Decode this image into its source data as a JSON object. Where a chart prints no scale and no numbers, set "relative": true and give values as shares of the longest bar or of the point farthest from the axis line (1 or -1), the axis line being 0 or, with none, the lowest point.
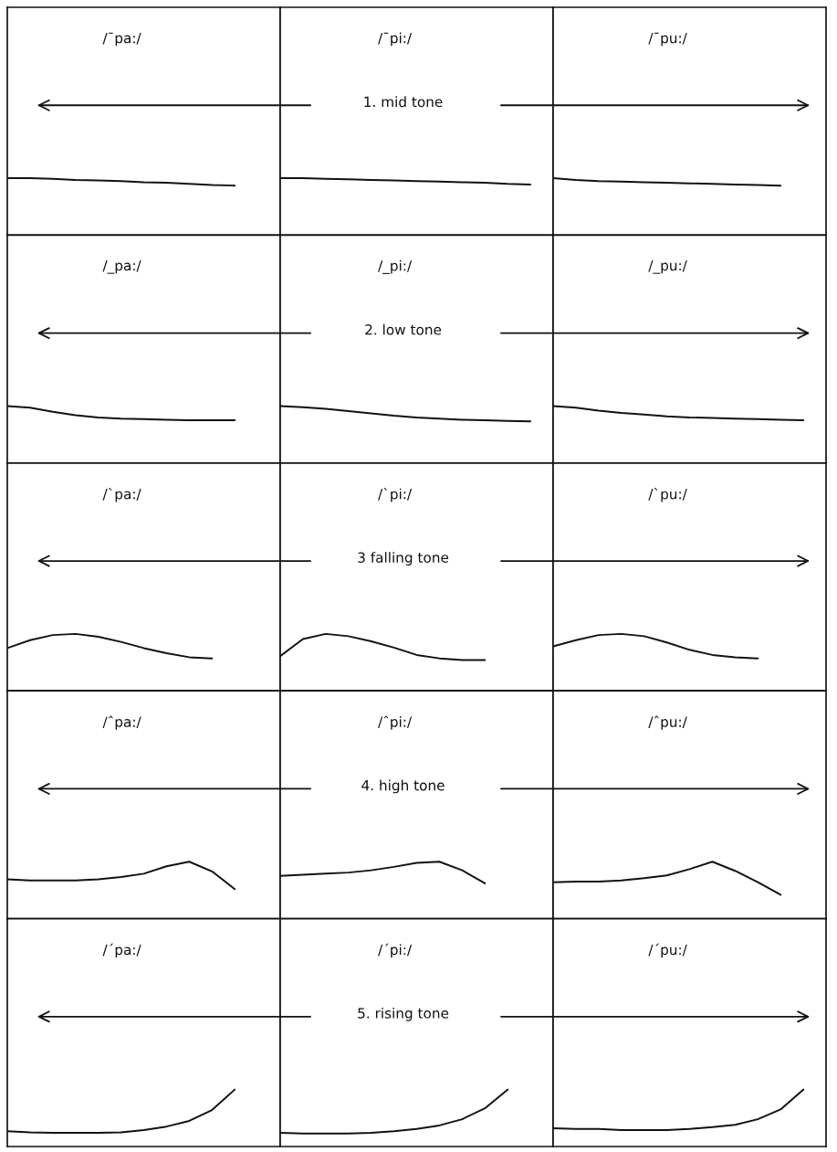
{
  "chart_data": [
    {
      "type": "line",
      "title": "/¯pa:/",
      "relative": true,
      "categories": [
        null,
        null,
        null,
        null,
        null,
        null,
        null,
        null,
        null,
        null,
        null,
        null,
        null
      ],
      "series": [
        {
          "color": "#111111",
          "values": [
            1,
            1,
            0.99,
            0.97,
            0.96,
            0.95,
            0.93,
            0.92,
            0.9,
            0.88,
            0.87,
            null,
            null
          ]
        }
      ]
    },
    {
      "type": "line",
      "title": "/¯pi:/",
      "relative": true,
      "annotations": [
        "1. mid tone"
      ],
      "categories": [
        null,
        null,
        null,
        null,
        null,
        null,
        null,
        null,
        null,
        null,
        null,
        null,
        null
      ],
      "series": [
        {
          "color": "#111111",
          "values": [
            1,
            1,
            0.99,
            0.98,
            0.97,
            0.96,
            0.95,
            0.94,
            0.93,
            0.92,
            0.9,
            0.89,
            null
          ]
        }
      ]
    },
    {
      "type": "line",
      "title": "/¯pu:/",
      "relative": true,
      "categories": [
        null,
        null,
        null,
        null,
        null,
        null,
        null,
        null,
        null,
        null,
        null,
        null,
        null
      ],
      "series": [
        {
          "color": "#111111",
          "values": [
            1,
            0.97,
            0.95,
            0.94,
            0.93,
            0.92,
            0.91,
            0.9,
            0.89,
            0.88,
            0.87,
            null,
            null
          ]
        }
      ]
    },
    {
      "type": "line",
      "title": "/_pa:/",
      "relative": true,
      "categories": [
        null,
        null,
        null,
        null,
        null,
        null,
        null,
        null,
        null,
        null,
        null,
        null,
        null
      ],
      "series": [
        {
          "color": "#111111",
          "values": [
            1,
            0.97,
            0.9,
            0.84,
            0.8,
            0.78,
            0.77,
            0.76,
            0.75,
            0.75,
            0.75,
            null,
            null
          ]
        }
      ]
    },
    {
      "type": "line",
      "title": "/_pi:/",
      "relative": true,
      "annotations": [
        "2. low tone"
      ],
      "categories": [
        null,
        null,
        null,
        null,
        null,
        null,
        null,
        null,
        null,
        null,
        null,
        null,
        null
      ],
      "series": [
        {
          "color": "#111111",
          "values": [
            1,
            0.98,
            0.95,
            0.91,
            0.87,
            0.83,
            0.8,
            0.78,
            0.76,
            0.75,
            0.74,
            0.73,
            null
          ]
        }
      ]
    },
    {
      "type": "line",
      "title": "/_pu:/",
      "relative": true,
      "categories": [
        null,
        null,
        null,
        null,
        null,
        null,
        null,
        null,
        null,
        null,
        null,
        null,
        null
      ],
      "series": [
        {
          "color": "#111111",
          "values": [
            1,
            0.97,
            0.92,
            0.88,
            0.85,
            0.82,
            0.8,
            0.79,
            0.78,
            0.77,
            0.76,
            0.75,
            null
          ]
        }
      ]
    },
    {
      "type": "line",
      "title": "/ˋpa:/",
      "relative": true,
      "categories": [
        null,
        null,
        null,
        null,
        null,
        null,
        null,
        null,
        null,
        null,
        null,
        null,
        null
      ],
      "series": [
        {
          "color": "#111111",
          "values": [
            0.75,
            0.89,
            0.98,
            1,
            0.95,
            0.86,
            0.75,
            0.66,
            0.59,
            0.57,
            null,
            null,
            null
          ]
        }
      ]
    },
    {
      "type": "line",
      "title": "/ˋpi:/",
      "relative": true,
      "annotations": [
        "3 falling tone"
      ],
      "categories": [
        null,
        null,
        null,
        null,
        null,
        null,
        null,
        null,
        null,
        null,
        null,
        null,
        null
      ],
      "series": [
        {
          "color": "#111111",
          "values": [
            0.61,
            0.91,
            1,
            0.96,
            0.87,
            0.76,
            0.63,
            0.57,
            0.54,
            0.54,
            null,
            null,
            null
          ]
        }
      ]
    },
    {
      "type": "line",
      "title": "/ˋpu:/",
      "relative": true,
      "categories": [
        null,
        null,
        null,
        null,
        null,
        null,
        null,
        null,
        null,
        null,
        null,
        null,
        null
      ],
      "series": [
        {
          "color": "#111111",
          "values": [
            0.78,
            0.89,
            0.98,
            1,
            0.96,
            0.85,
            0.72,
            0.63,
            0.59,
            0.57,
            null,
            null,
            null
          ]
        }
      ]
    },
    {
      "type": "line",
      "title": "/ˆpa:/",
      "relative": true,
      "categories": [
        null,
        null,
        null,
        null,
        null,
        null,
        null,
        null,
        null,
        null,
        null,
        null,
        null
      ],
      "series": [
        {
          "color": "#111111",
          "values": [
            0.69,
            0.67,
            0.67,
            0.67,
            0.69,
            0.73,
            0.79,
            0.92,
            1,
            0.83,
            0.52,
            null,
            null
          ]
        }
      ]
    },
    {
      "type": "line",
      "title": "/ˆpi:/",
      "relative": true,
      "annotations": [
        "4. high tone"
      ],
      "categories": [
        null,
        null,
        null,
        null,
        null,
        null,
        null,
        null,
        null,
        null,
        null,
        null,
        null
      ],
      "series": [
        {
          "color": "#111111",
          "values": [
            0.75,
            0.77,
            0.79,
            0.81,
            0.85,
            0.91,
            0.98,
            1,
            0.85,
            0.62,
            null,
            null,
            null
          ]
        }
      ]
    },
    {
      "type": "line",
      "title": "/ˆpu:/",
      "relative": true,
      "categories": [
        null,
        null,
        null,
        null,
        null,
        null,
        null,
        null,
        null,
        null,
        null,
        null,
        null
      ],
      "series": [
        {
          "color": "#111111",
          "values": [
            0.64,
            0.65,
            0.65,
            0.67,
            0.71,
            0.76,
            0.87,
            1,
            0.84,
            0.64,
            0.42,
            null,
            null
          ]
        }
      ]
    },
    {
      "type": "line",
      "title": "/ˊpa:/",
      "relative": true,
      "categories": [
        null,
        null,
        null,
        null,
        null,
        null,
        null,
        null,
        null,
        null,
        null,
        null,
        null
      ],
      "series": [
        {
          "color": "#111111",
          "values": [
            0.27,
            0.25,
            0.24,
            0.24,
            0.24,
            0.25,
            0.29,
            0.35,
            0.45,
            0.64,
            1,
            null,
            null
          ]
        }
      ]
    },
    {
      "type": "line",
      "title": "/ˊpi:/",
      "relative": true,
      "annotations": [
        "5. rising tone"
      ],
      "categories": [
        null,
        null,
        null,
        null,
        null,
        null,
        null,
        null,
        null,
        null,
        null,
        null,
        null
      ],
      "series": [
        {
          "color": "#111111",
          "values": [
            0.24,
            0.23,
            0.23,
            0.23,
            0.24,
            0.27,
            0.31,
            0.37,
            0.48,
            0.67,
            1,
            null,
            null
          ]
        }
      ]
    },
    {
      "type": "line",
      "title": "/ˊpu:/",
      "relative": true,
      "categories": [
        null,
        null,
        null,
        null,
        null,
        null,
        null,
        null,
        null,
        null,
        null,
        null,
        null
      ],
      "series": [
        {
          "color": "#111111",
          "values": [
            0.32,
            0.31,
            0.31,
            0.29,
            0.29,
            0.29,
            0.31,
            0.34,
            0.38,
            0.48,
            0.65,
            1,
            null
          ]
        }
      ]
    }
  ]
}
